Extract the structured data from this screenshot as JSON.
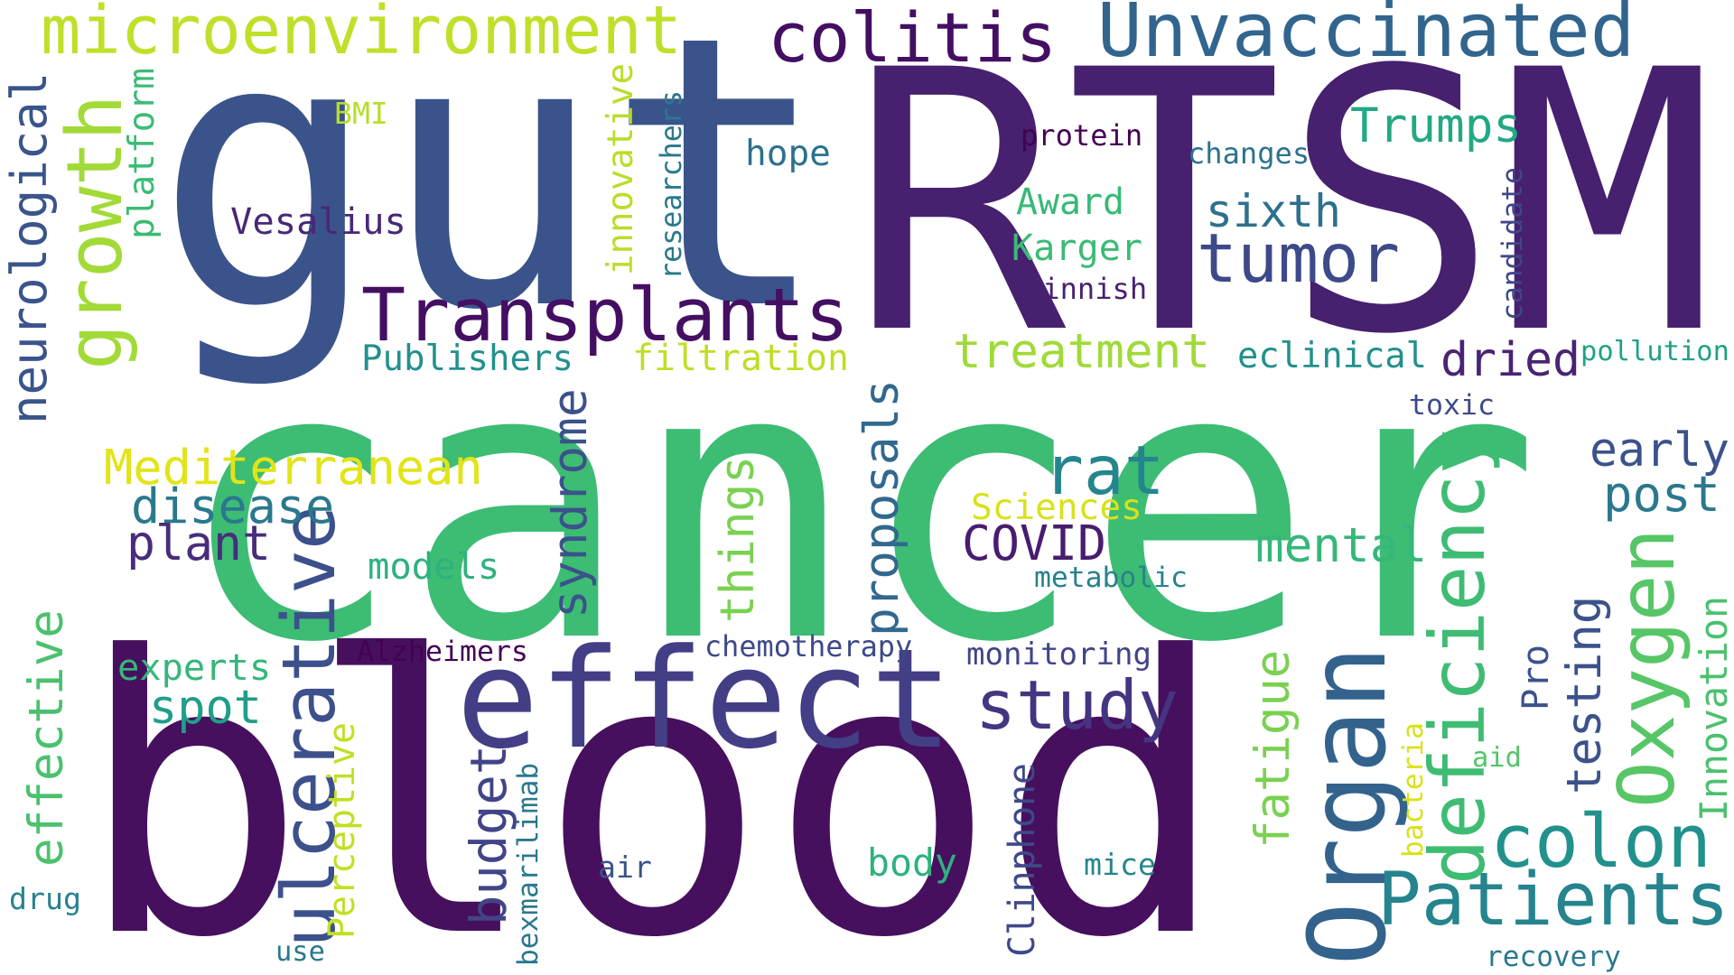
{
  "palette": {
    "dark_purple": "#440f63",
    "purple": "#482474",
    "indigo": "#414487",
    "slate_blue": "#3b528b",
    "steel_blue": "#31688e",
    "teal_blue": "#2a788e",
    "teal": "#21918c",
    "sea_green": "#22a884",
    "green": "#44bf70",
    "emerald": "#3bbb75",
    "light_green": "#7ad151",
    "yellow_green": "#bddf26",
    "yellow": "#e2e418"
  },
  "words": [
    {
      "text": "cancer",
      "color": "#3dbc74"
    },
    {
      "text": "blood",
      "color": "#46105f"
    },
    {
      "text": "gut",
      "color": "#3b538b"
    },
    {
      "text": "RTSM",
      "color": "#47206f"
    },
    {
      "text": "effect",
      "color": "#433e85"
    },
    {
      "text": "Organ",
      "color": "#33638d"
    },
    {
      "text": "Transplants",
      "color": "#440f63"
    },
    {
      "text": "colitis",
      "color": "#440f63"
    },
    {
      "text": "Unvaccinated",
      "color": "#32658e"
    },
    {
      "text": "microenvironment",
      "color": "#bfe02a"
    },
    {
      "text": "tumor",
      "color": "#3d4a89"
    },
    {
      "text": "Trumps",
      "color": "#22a884"
    },
    {
      "text": "Patients",
      "color": "#25848e"
    },
    {
      "text": "deficiency",
      "color": "#3fbc73"
    },
    {
      "text": "ulcerative",
      "color": "#3c508b"
    },
    {
      "text": "colon",
      "color": "#21918c"
    },
    {
      "text": "study",
      "color": "#453581"
    },
    {
      "text": "Oxygen",
      "color": "#56c667"
    },
    {
      "text": "rat",
      "color": "#25858e"
    },
    {
      "text": "growth",
      "color": "#a2da37"
    },
    {
      "text": "neurological",
      "color": "#3a548c"
    },
    {
      "text": "syndrome",
      "color": "#3b528b"
    },
    {
      "text": "Mediterranean",
      "color": "#e2e418"
    },
    {
      "text": "disease",
      "color": "#2a788e"
    },
    {
      "text": "plant",
      "color": "#472d7b"
    },
    {
      "text": "COVID",
      "color": "#481c6e"
    },
    {
      "text": "mental",
      "color": "#35b779"
    },
    {
      "text": "early",
      "color": "#3b528b"
    },
    {
      "text": "post",
      "color": "#2a788e"
    },
    {
      "text": "testing",
      "color": "#3b528b"
    },
    {
      "text": "proposals",
      "color": "#31688e"
    },
    {
      "text": "things",
      "color": "#7ad151"
    },
    {
      "text": "fatigue",
      "color": "#7ad151"
    },
    {
      "text": "dried",
      "color": "#482475"
    },
    {
      "text": "treatment",
      "color": "#a0da39"
    },
    {
      "text": "spot",
      "color": "#1f9e89"
    },
    {
      "text": "monitoring",
      "color": "#414487"
    },
    {
      "text": "budget",
      "color": "#414487"
    },
    {
      "text": "Perceptive",
      "color": "#c2df23"
    },
    {
      "text": "effective",
      "color": "#4ac16d"
    },
    {
      "text": "Clinphone",
      "color": "#3e4989"
    },
    {
      "text": "Vesalius",
      "color": "#482878"
    },
    {
      "text": "platform",
      "color": "#3bbb75"
    },
    {
      "text": "innovative",
      "color": "#b8de29"
    },
    {
      "text": "researchers",
      "color": "#2a788e"
    },
    {
      "text": "hope",
      "color": "#2c718e"
    },
    {
      "text": "protein",
      "color": "#440154"
    },
    {
      "text": "changes",
      "color": "#2c728e"
    },
    {
      "text": "sixth",
      "color": "#2d708e"
    },
    {
      "text": "Award",
      "color": "#38b977"
    },
    {
      "text": "Karger",
      "color": "#3bbb75"
    },
    {
      "text": "Finnish",
      "color": "#482173"
    },
    {
      "text": "Publishers",
      "color": "#21918c"
    },
    {
      "text": "filtration",
      "color": "#bddf26"
    },
    {
      "text": "eclinical",
      "color": "#21918c"
    },
    {
      "text": "pollution",
      "color": "#1fa187"
    },
    {
      "text": "toxic",
      "color": "#3e4a89"
    },
    {
      "text": "Sciences",
      "color": "#d8e219"
    },
    {
      "text": "metabolic",
      "color": "#26828e"
    },
    {
      "text": "models",
      "color": "#2db27d"
    },
    {
      "text": "Alzheimers",
      "color": "#440154"
    },
    {
      "text": "chemotherapy",
      "color": "#3e4989"
    },
    {
      "text": "experts",
      "color": "#35b779"
    },
    {
      "text": "candidate",
      "color": "#404688"
    },
    {
      "text": "Pro",
      "color": "#3b528b"
    },
    {
      "text": "Innovation",
      "color": "#4ac16d"
    },
    {
      "text": "aid",
      "color": "#52c569"
    },
    {
      "text": "bacteria",
      "color": "#d8e219"
    },
    {
      "text": "BMI",
      "color": "#b5de2b"
    },
    {
      "text": "body",
      "color": "#2db27d"
    },
    {
      "text": "mice",
      "color": "#25858e"
    },
    {
      "text": "air",
      "color": "#3b528b"
    },
    {
      "text": "bexmarilimab",
      "color": "#2a788e"
    },
    {
      "text": "use",
      "color": "#2a788e"
    },
    {
      "text": "drug",
      "color": "#26828e"
    },
    {
      "text": "recovery",
      "color": "#2a788e"
    }
  ]
}
